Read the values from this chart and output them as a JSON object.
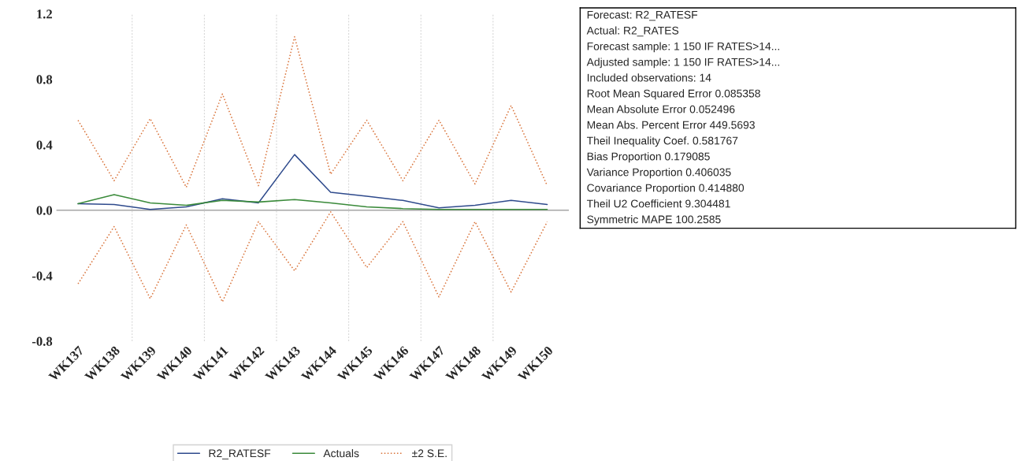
{
  "chart_data": {
    "type": "line",
    "categories": [
      "WK137",
      "WK138",
      "WK139",
      "WK140",
      "WK141",
      "WK142",
      "WK143",
      "WK144",
      "WK145",
      "WK146",
      "WK147",
      "WK148",
      "WK149",
      "WK150"
    ],
    "series": [
      {
        "name": "R2_RATESF",
        "color": "#2e4a8c",
        "values": [
          0.04,
          0.035,
          0.005,
          0.02,
          0.07,
          0.045,
          0.34,
          0.11,
          0.085,
          0.06,
          0.015,
          0.03,
          0.06,
          0.035
        ]
      },
      {
        "name": "Actuals",
        "color": "#3a8a3a",
        "values": [
          0.04,
          0.095,
          0.045,
          0.03,
          0.06,
          0.05,
          0.065,
          0.045,
          0.02,
          0.01,
          0.005,
          0.005,
          0.005,
          0.005
        ]
      },
      {
        "name": "±2 S.E.",
        "color": "#d9733a",
        "line_style": "dotted",
        "values": [
          0.55,
          0.18,
          0.56,
          0.14,
          0.71,
          0.15,
          1.06,
          0.22,
          0.55,
          0.18,
          0.55,
          0.16,
          0.64,
          0.15
        ]
      },
      {
        "color": "#d9733a",
        "line_style": "dotted",
        "values": [
          -0.45,
          -0.1,
          -0.54,
          -0.09,
          -0.56,
          -0.07,
          -0.37,
          -0.01,
          -0.35,
          -0.07,
          -0.53,
          -0.07,
          -0.5,
          -0.07
        ]
      }
    ],
    "ylim": [
      -0.8,
      1.2
    ],
    "yticks": [
      {
        "value": -0.8,
        "label": "-0.8"
      },
      {
        "value": -0.4,
        "label": "-0.4"
      },
      {
        "value": 0,
        "label": "0.0"
      },
      {
        "value": 0.4,
        "label": "0.4"
      },
      {
        "value": 0.8,
        "label": "0.8"
      },
      {
        "value": 1.2,
        "label": "1.2"
      }
    ],
    "ref_lines": [
      {
        "axis": "y",
        "value": 0,
        "color": "#a6a6a6"
      }
    ],
    "grid": "x",
    "legend": "bottom",
    "marker": "none",
    "annotations": [
      "Forecast: R2_RATESF",
      "Actual: R2_RATES",
      "Forecast sample: 1 150 IF RATES>14...",
      "Adjusted sample: 1 150 IF RATES>14...",
      "Included observations: 14",
      "Root Mean Squared Error 0.085358",
      "Mean Absolute Error 0.052496",
      "Mean Abs. Percent Error 449.5693",
      "Theil Inequality Coef. 0.581767",
      "Bias Proportion 0.179085",
      "Variance Proportion 0.406035",
      "Covariance Proportion 0.414880",
      "Theil U2 Coefficient 9.304481",
      "Symmetric MAPE 100.2585"
    ]
  }
}
